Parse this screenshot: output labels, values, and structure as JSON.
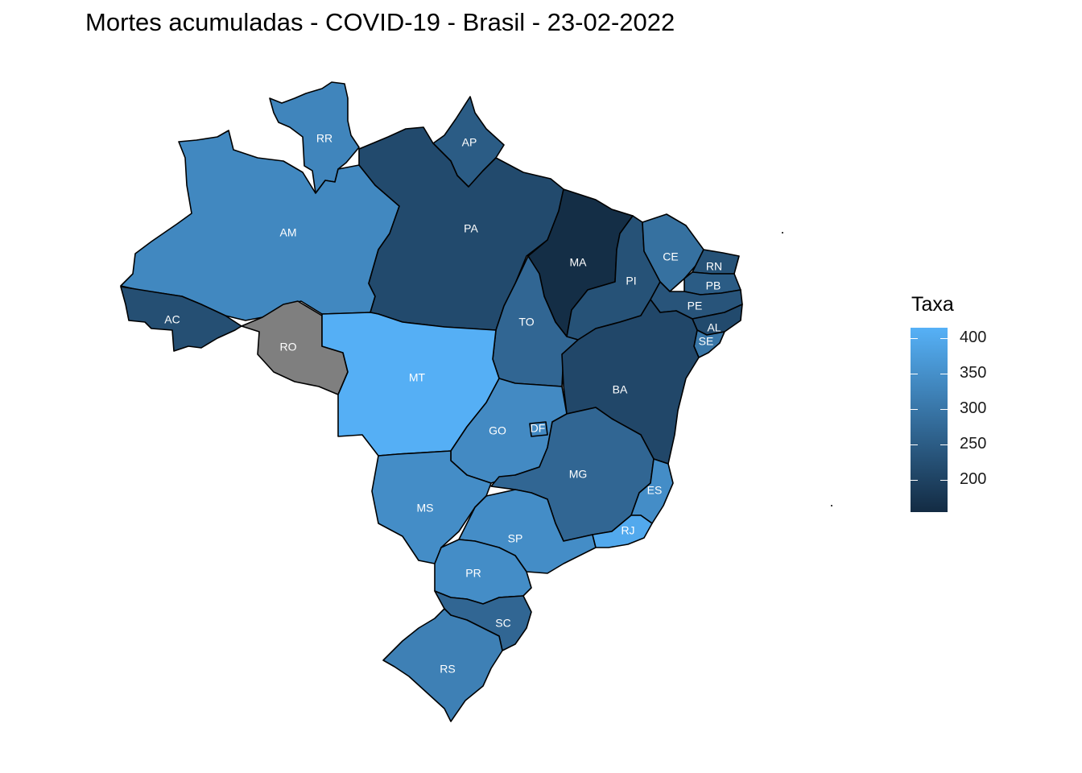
{
  "title": "Mortes acumuladas - COVID-19 - Brasil - 23-02-2022",
  "legend": {
    "title": "Taxa",
    "min": 155,
    "max": 415,
    "low_color": "#132B43",
    "high_color": "#56B1F7",
    "na_color": "#7F7F7F",
    "ticks": [
      {
        "label": "400",
        "value": 400
      },
      {
        "label": "350",
        "value": 350
      },
      {
        "label": "300",
        "value": 300
      },
      {
        "label": "250",
        "value": 250
      },
      {
        "label": "200",
        "value": 200
      }
    ]
  },
  "states": [
    {
      "id": "RR",
      "label": "RR",
      "value": 330
    },
    {
      "id": "AP",
      "label": "AP",
      "value": 250
    },
    {
      "id": "AM",
      "label": "AM",
      "value": 335
    },
    {
      "id": "PA",
      "label": "PA",
      "value": 215
    },
    {
      "id": "MA",
      "label": "MA",
      "value": 160
    },
    {
      "id": "CE",
      "label": "CE",
      "value": 290
    },
    {
      "id": "RN",
      "label": "RN",
      "value": 230
    },
    {
      "id": "PB",
      "label": "PB",
      "value": 250
    },
    {
      "id": "PI",
      "label": "PI",
      "value": 230
    },
    {
      "id": "PE",
      "label": "PE",
      "value": 235
    },
    {
      "id": "AL",
      "label": "AL",
      "value": 215
    },
    {
      "id": "SE",
      "label": "SE",
      "value": 300
    },
    {
      "id": "AC",
      "label": "AC",
      "value": 225
    },
    {
      "id": "RO",
      "label": "RO",
      "value": null
    },
    {
      "id": "MT",
      "label": "MT",
      "value": 412
    },
    {
      "id": "TO",
      "label": "TO",
      "value": 270
    },
    {
      "id": "BA",
      "label": "BA",
      "value": 210
    },
    {
      "id": "GO",
      "label": "GO",
      "value": 340
    },
    {
      "id": "DF",
      "label": "DF",
      "value": 340
    },
    {
      "id": "MG",
      "label": "MG",
      "value": 270
    },
    {
      "id": "ES",
      "label": "ES",
      "value": 345
    },
    {
      "id": "MS",
      "label": "MS",
      "value": 345
    },
    {
      "id": "SP",
      "label": "SP",
      "value": 345
    },
    {
      "id": "RJ",
      "label": "RJ",
      "value": 400
    },
    {
      "id": "PR",
      "label": "PR",
      "value": 345
    },
    {
      "id": "SC",
      "label": "SC",
      "value": 270
    },
    {
      "id": "RS",
      "label": "RS",
      "value": 320
    }
  ]
}
